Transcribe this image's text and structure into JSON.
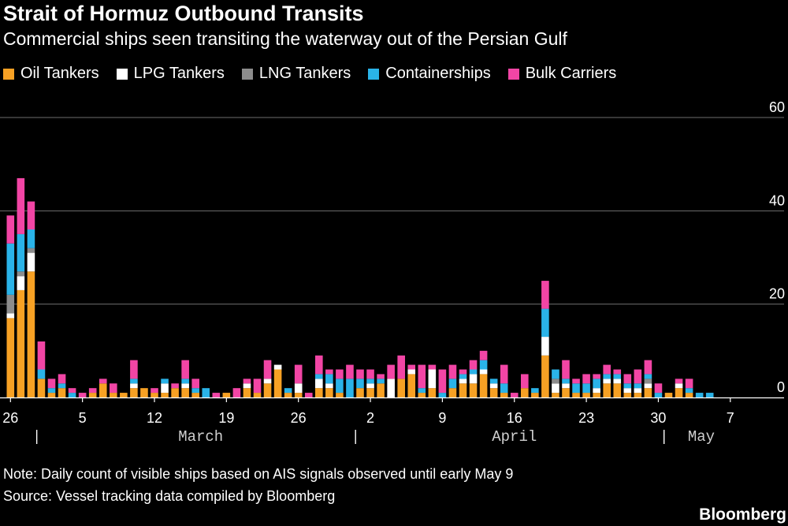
{
  "header": {
    "title": "Strait of Hormuz Outbound Transits",
    "subtitle": "Commercial ships seen transiting the waterway out of the Persian Gulf"
  },
  "footer": {
    "note": "Note: Daily count of visible ships based on AIS signals observed until early May 9",
    "source": "Source: Vessel tracking data compiled by Bloomberg",
    "brand": "Bloomberg"
  },
  "chart_data": {
    "type": "bar",
    "stacked": true,
    "title": "Strait of Hormuz Outbound Transits",
    "subtitle": "Commercial ships seen transiting the waterway out of the Persian Gulf",
    "xlabel": "",
    "ylabel": "",
    "ylim": [
      0,
      60
    ],
    "yticks": [
      0,
      20,
      40,
      60
    ],
    "grid": true,
    "legend_position": "top-left",
    "x_tick_labels": [
      "26",
      "5",
      "12",
      "19",
      "26",
      "2",
      "9",
      "16",
      "23",
      "30",
      "7"
    ],
    "month_labels": [
      "March",
      "April",
      "May"
    ],
    "start_date": "Feb 26",
    "categories": [
      "Feb 26",
      "Feb 27",
      "Feb 28",
      "Mar 1",
      "Mar 2",
      "Mar 3",
      "Mar 4",
      "Mar 5",
      "Mar 6",
      "Mar 7",
      "Mar 8",
      "Mar 9",
      "Mar 10",
      "Mar 11",
      "Mar 12",
      "Mar 13",
      "Mar 14",
      "Mar 15",
      "Mar 16",
      "Mar 17",
      "Mar 18",
      "Mar 19",
      "Mar 20",
      "Mar 21",
      "Mar 22",
      "Mar 23",
      "Mar 24",
      "Mar 25",
      "Mar 26",
      "Mar 27",
      "Mar 28",
      "Mar 29",
      "Mar 30",
      "Mar 31",
      "Apr 1",
      "Apr 2",
      "Apr 3",
      "Apr 4",
      "Apr 5",
      "Apr 6",
      "Apr 7",
      "Apr 8",
      "Apr 9",
      "Apr 10",
      "Apr 11",
      "Apr 12",
      "Apr 13",
      "Apr 14",
      "Apr 15",
      "Apr 16",
      "Apr 17",
      "Apr 18",
      "Apr 19",
      "Apr 20",
      "Apr 21",
      "Apr 22",
      "Apr 23",
      "Apr 24",
      "Apr 25",
      "Apr 26",
      "Apr 27",
      "Apr 28",
      "Apr 29",
      "Apr 30",
      "May 1",
      "May 2",
      "May 3",
      "May 4",
      "May 5"
    ],
    "series": [
      {
        "name": "Oil Tankers",
        "color": "#f7a124",
        "values": [
          17,
          23,
          27,
          4,
          1,
          2,
          0,
          0,
          1,
          3,
          1,
          1,
          2,
          2,
          1,
          1,
          2,
          2,
          1,
          0,
          0,
          1,
          0,
          2,
          1,
          3,
          6,
          1,
          1,
          0,
          2,
          2,
          1,
          0,
          2,
          2,
          3,
          0,
          4,
          5,
          1,
          2,
          0,
          2,
          3,
          3,
          5,
          2,
          1,
          0,
          2,
          1,
          9,
          1,
          2,
          1,
          1,
          1,
          3,
          3,
          1,
          1,
          2,
          0,
          1,
          2,
          1,
          0,
          0
        ]
      },
      {
        "name": "LPG Tankers",
        "color": "#ffffff",
        "values": [
          1,
          3,
          4,
          0,
          0,
          0,
          0,
          0,
          0,
          0,
          0,
          0,
          1,
          0,
          0,
          2,
          0,
          1,
          0,
          0,
          0,
          0,
          0,
          1,
          0,
          1,
          1,
          0,
          2,
          0,
          2,
          1,
          0,
          0,
          0,
          1,
          0,
          4,
          0,
          1,
          0,
          4,
          0,
          0,
          1,
          2,
          1,
          1,
          0,
          0,
          0,
          0,
          4,
          2,
          1,
          0,
          0,
          1,
          1,
          1,
          1,
          1,
          1,
          0,
          0,
          1,
          0,
          0,
          0
        ]
      },
      {
        "name": "LNG Tankers",
        "color": "#8c8c8c",
        "values": [
          4,
          1,
          1,
          0,
          0,
          0,
          0,
          0,
          0,
          0,
          0,
          0,
          0,
          0,
          0,
          0,
          0,
          0,
          0,
          0,
          0,
          0,
          0,
          0,
          0,
          0,
          0,
          0,
          0,
          0,
          0,
          0,
          0,
          0,
          0,
          0,
          0,
          0,
          0,
          0,
          0,
          0,
          0,
          0,
          0,
          0,
          0,
          0,
          0,
          0,
          0,
          0,
          0,
          1,
          0,
          0,
          0,
          0,
          0,
          0,
          0,
          0,
          1,
          0,
          0,
          0,
          0,
          0,
          0
        ]
      },
      {
        "name": "Containerships",
        "color": "#2ab3e8",
        "values": [
          11,
          8,
          4,
          2,
          1,
          1,
          1,
          0,
          0,
          0,
          0,
          0,
          1,
          0,
          0,
          1,
          0,
          1,
          1,
          2,
          0,
          0,
          0,
          0,
          0,
          0,
          0,
          1,
          0,
          0,
          1,
          2,
          3,
          4,
          2,
          1,
          1,
          0,
          0,
          0,
          1,
          0,
          1,
          2,
          1,
          1,
          2,
          1,
          2,
          0,
          0,
          1,
          6,
          2,
          1,
          2,
          2,
          2,
          1,
          1,
          1,
          1,
          1,
          1,
          0,
          0,
          1,
          1,
          1
        ]
      },
      {
        "name": "Bulk Carriers",
        "color": "#f245a5",
        "values": [
          6,
          12,
          6,
          6,
          2,
          2,
          1,
          1,
          1,
          1,
          2,
          0,
          4,
          0,
          1,
          0,
          1,
          4,
          2,
          0,
          1,
          0,
          2,
          1,
          3,
          4,
          0,
          0,
          4,
          1,
          4,
          1,
          2,
          3,
          2,
          2,
          1,
          3,
          5,
          1,
          5,
          1,
          5,
          3,
          1,
          2,
          2,
          0,
          4,
          1,
          3,
          0,
          6,
          0,
          4,
          1,
          2,
          1,
          2,
          1,
          2,
          3,
          3,
          2,
          0,
          1,
          2,
          0,
          0
        ]
      }
    ]
  }
}
